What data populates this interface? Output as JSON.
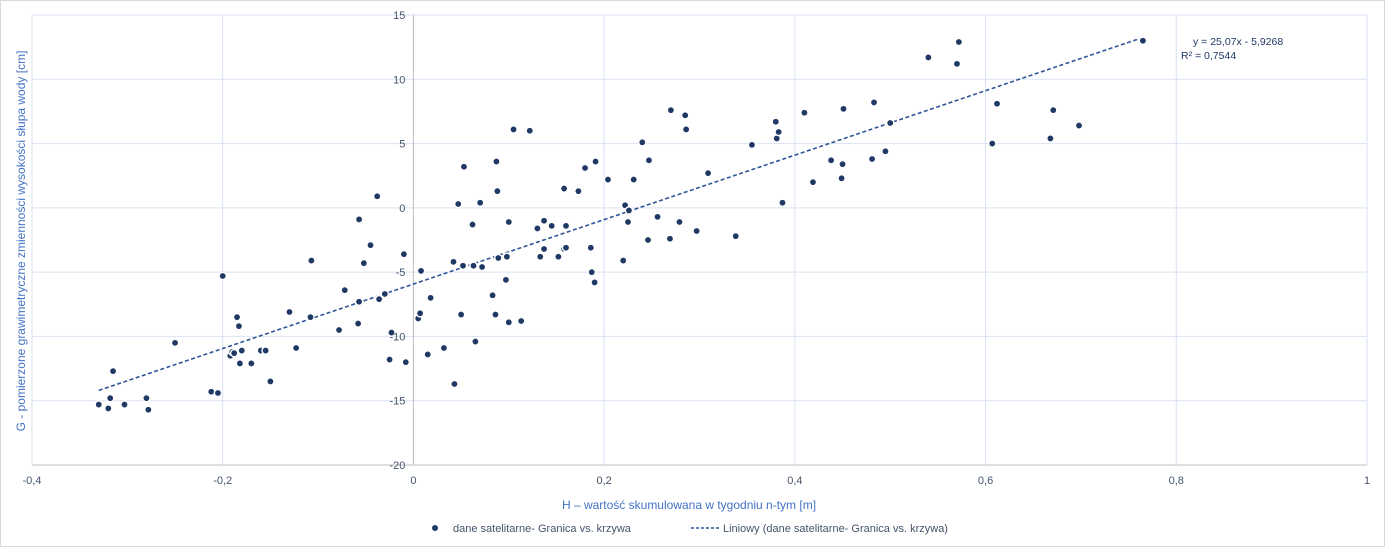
{
  "chart_data": {
    "type": "scatter",
    "xlabel": "H – wartość skumulowana w tygodniu n-tym [m]",
    "ylabel": "G -  pomierzone  grawimetryczne  zmienności wysokości słupa  wody   [cm]",
    "xlim": [
      -0.4,
      1.0
    ],
    "ylim": [
      -20,
      15
    ],
    "x_ticks": [
      -0.4,
      -0.2,
      0,
      0.2,
      0.4,
      0.6,
      0.8,
      1
    ],
    "x_tick_labels": [
      "-0,4",
      "-0,2",
      "0",
      "0,2",
      "0,4",
      "0,6",
      "0,8",
      "1"
    ],
    "y_ticks": [
      -20,
      -15,
      -10,
      -5,
      0,
      5,
      10,
      15
    ],
    "y_tick_labels": [
      "-20",
      "-15",
      "-10",
      "-5",
      "0",
      "5",
      "10",
      "15"
    ],
    "grid": true,
    "legend_position": "bottom",
    "colors": {
      "marker": "#1f3864",
      "trendline": "#2f5597",
      "grid": "#d9e2f3",
      "axis_title": "#4472c4"
    },
    "trendline": {
      "slope": 25.07,
      "intercept": -5.9268,
      "x_range": [
        -0.33,
        0.765
      ],
      "equation_label": "y = 25,07x - 5,9268",
      "r2_label": "R² = 0,7544"
    },
    "series": [
      {
        "name": "dane satelitarne- Granica vs. krzywa",
        "kind": "scatter",
        "points": [
          [
            -0.33,
            -15.3
          ],
          [
            -0.32,
            -15.6
          ],
          [
            -0.318,
            -14.8
          ],
          [
            -0.315,
            -12.7
          ],
          [
            -0.303,
            -15.3
          ],
          [
            -0.28,
            -14.8
          ],
          [
            -0.278,
            -15.7
          ],
          [
            -0.25,
            -10.5
          ],
          [
            -0.212,
            -14.3
          ],
          [
            -0.205,
            -14.4
          ],
          [
            -0.2,
            -5.3
          ],
          [
            -0.192,
            -11.5
          ],
          [
            -0.19,
            -11.2
          ],
          [
            -0.188,
            -11.3
          ],
          [
            -0.185,
            -8.5
          ],
          [
            -0.183,
            -9.2
          ],
          [
            -0.182,
            -12.1
          ],
          [
            -0.18,
            -11.1
          ],
          [
            -0.17,
            -12.1
          ],
          [
            -0.16,
            -11.1
          ],
          [
            -0.155,
            -11.1
          ],
          [
            -0.15,
            -13.5
          ],
          [
            -0.13,
            -8.1
          ],
          [
            -0.123,
            -10.9
          ],
          [
            -0.108,
            -8.5
          ],
          [
            -0.107,
            -4.1
          ],
          [
            -0.078,
            -9.5
          ],
          [
            -0.072,
            -6.4
          ],
          [
            -0.058,
            -9.0
          ],
          [
            -0.057,
            -0.9
          ],
          [
            -0.057,
            -7.3
          ],
          [
            -0.052,
            -4.3
          ],
          [
            -0.045,
            -2.9
          ],
          [
            -0.038,
            0.9
          ],
          [
            -0.036,
            -7.1
          ],
          [
            -0.03,
            -6.7
          ],
          [
            -0.025,
            -11.8
          ],
          [
            -0.023,
            -9.7
          ],
          [
            -0.01,
            -3.6
          ],
          [
            -0.008,
            -12.0
          ],
          [
            0.005,
            -8.6
          ],
          [
            0.007,
            -8.2
          ],
          [
            0.008,
            -4.9
          ],
          [
            0.015,
            -11.4
          ],
          [
            0.018,
            -7.0
          ],
          [
            0.032,
            -10.9
          ],
          [
            0.042,
            -4.2
          ],
          [
            0.043,
            -13.7
          ],
          [
            0.047,
            0.3
          ],
          [
            0.05,
            -8.3
          ],
          [
            0.052,
            -4.5
          ],
          [
            0.053,
            3.2
          ],
          [
            0.062,
            -1.3
          ],
          [
            0.063,
            -4.5
          ],
          [
            0.065,
            -10.4
          ],
          [
            0.07,
            0.4
          ],
          [
            0.072,
            -4.6
          ],
          [
            0.083,
            -6.8
          ],
          [
            0.086,
            -8.3
          ],
          [
            0.087,
            3.6
          ],
          [
            0.088,
            1.3
          ],
          [
            0.089,
            -3.9
          ],
          [
            0.097,
            -5.6
          ],
          [
            0.098,
            -3.8
          ],
          [
            0.1,
            -1.1
          ],
          [
            0.1,
            -8.9
          ],
          [
            0.105,
            6.1
          ],
          [
            0.113,
            -8.8
          ],
          [
            0.122,
            6.0
          ],
          [
            0.13,
            -1.6
          ],
          [
            0.133,
            -3.8
          ],
          [
            0.137,
            -1.0
          ],
          [
            0.137,
            -3.2
          ],
          [
            0.145,
            -1.4
          ],
          [
            0.152,
            -3.8
          ],
          [
            0.158,
            1.5
          ],
          [
            0.158,
            -3.2
          ],
          [
            0.16,
            -1.4
          ],
          [
            0.16,
            -3.1
          ],
          [
            0.173,
            1.3
          ],
          [
            0.18,
            3.1
          ],
          [
            0.186,
            -3.1
          ],
          [
            0.187,
            -5.0
          ],
          [
            0.19,
            -5.8
          ],
          [
            0.191,
            3.6
          ],
          [
            0.204,
            2.2
          ],
          [
            0.22,
            -4.1
          ],
          [
            0.222,
            0.2
          ],
          [
            0.225,
            -1.1
          ],
          [
            0.226,
            -0.2
          ],
          [
            0.231,
            2.2
          ],
          [
            0.24,
            5.1
          ],
          [
            0.246,
            -2.5
          ],
          [
            0.247,
            3.7
          ],
          [
            0.256,
            -0.7
          ],
          [
            0.269,
            -2.4
          ],
          [
            0.27,
            7.6
          ],
          [
            0.279,
            -1.1
          ],
          [
            0.285,
            7.2
          ],
          [
            0.286,
            6.1
          ],
          [
            0.297,
            -1.8
          ],
          [
            0.309,
            2.7
          ],
          [
            0.338,
            -2.2
          ],
          [
            0.355,
            4.9
          ],
          [
            0.38,
            6.7
          ],
          [
            0.381,
            5.4
          ],
          [
            0.383,
            5.9
          ],
          [
            0.387,
            0.4
          ],
          [
            0.41,
            7.4
          ],
          [
            0.419,
            2.0
          ],
          [
            0.438,
            3.7
          ],
          [
            0.449,
            2.3
          ],
          [
            0.45,
            3.4
          ],
          [
            0.451,
            7.7
          ],
          [
            0.481,
            3.8
          ],
          [
            0.483,
            8.2
          ],
          [
            0.495,
            4.4
          ],
          [
            0.5,
            6.6
          ],
          [
            0.54,
            11.7
          ],
          [
            0.57,
            11.2
          ],
          [
            0.572,
            12.9
          ],
          [
            0.607,
            5.0
          ],
          [
            0.612,
            8.1
          ],
          [
            0.668,
            5.4
          ],
          [
            0.671,
            7.6
          ],
          [
            0.698,
            6.4
          ],
          [
            0.765,
            13.0
          ]
        ]
      },
      {
        "name": "Liniowy (dane satelitarne- Granica vs. krzywa)",
        "kind": "trendline"
      }
    ]
  }
}
